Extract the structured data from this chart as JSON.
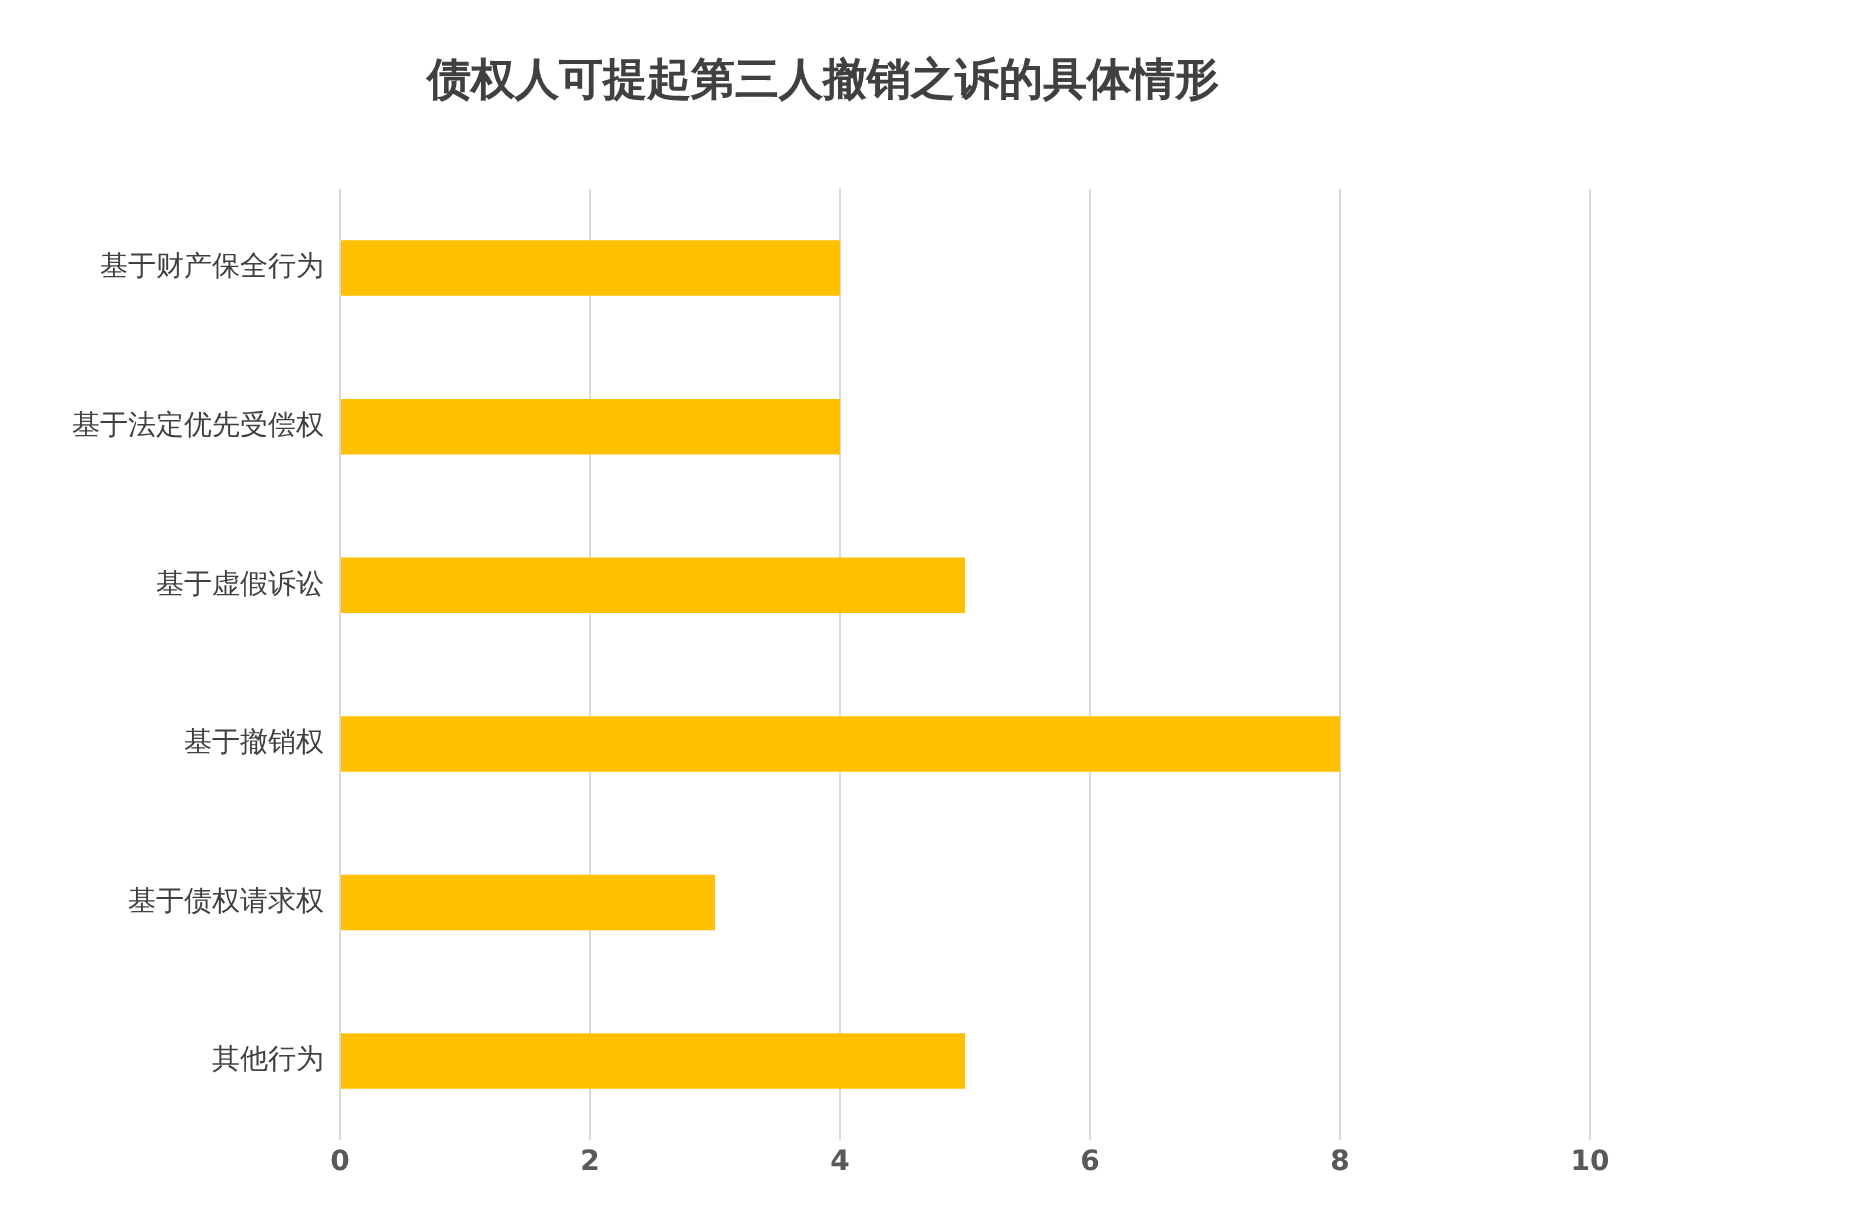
{
  "chart_data": {
    "type": "bar",
    "orientation": "horizontal",
    "title": "债权人可提起第三人撤销之诉的具体情形",
    "categories": [
      "基于财产保全行为",
      "基于法定优先受偿权",
      "基于虚假诉讼",
      "基于撤销权",
      "基于债权请求权",
      "其他行为"
    ],
    "values": [
      4,
      4,
      5,
      8,
      3,
      5
    ],
    "color": "#ffc000",
    "xlim": [
      0,
      10
    ],
    "xticks": [
      0,
      2,
      4,
      6,
      8,
      10
    ],
    "grid": "x",
    "legend": false
  }
}
